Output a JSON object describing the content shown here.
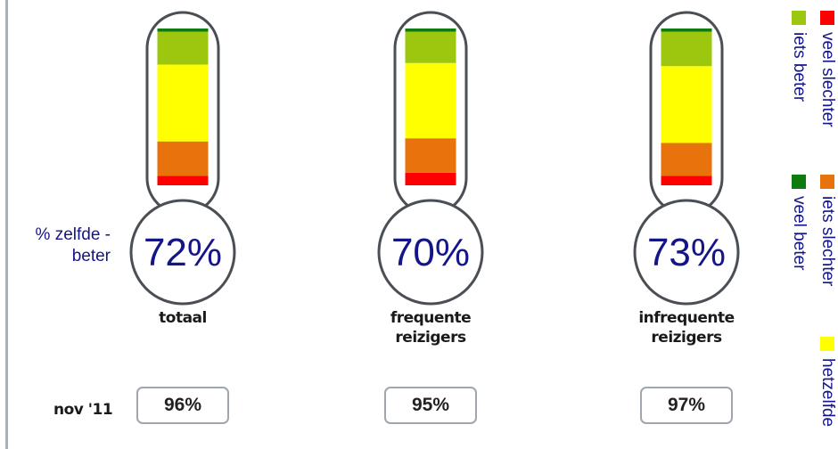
{
  "chart_data": {
    "type": "bar",
    "stacked": true,
    "ylabel": "% zelfde - beter",
    "categories": [
      "totaal",
      "frequente reizigers",
      "infrequente reizigers"
    ],
    "headline_values": [
      "72%",
      "70%",
      "73%"
    ],
    "series": [
      {
        "name": "veel slechter",
        "color": "#ff0000",
        "values": [
          6,
          8,
          6
        ]
      },
      {
        "name": "iets slechter",
        "color": "#e8720c",
        "values": [
          22,
          22,
          21
        ]
      },
      {
        "name": "hetzelfde",
        "color": "#ffff00",
        "values": [
          49,
          48,
          49
        ]
      },
      {
        "name": "iets beter",
        "color": "#9dc70e",
        "values": [
          21,
          20,
          22
        ]
      },
      {
        "name": "veel beter",
        "color": "#0f7a10",
        "values": [
          2,
          2,
          2
        ]
      }
    ],
    "ylim": [
      0,
      100
    ],
    "previous": {
      "label": "nov '11",
      "values": [
        "96%",
        "95%",
        "97%"
      ]
    },
    "legend": {
      "position": "right"
    }
  }
}
